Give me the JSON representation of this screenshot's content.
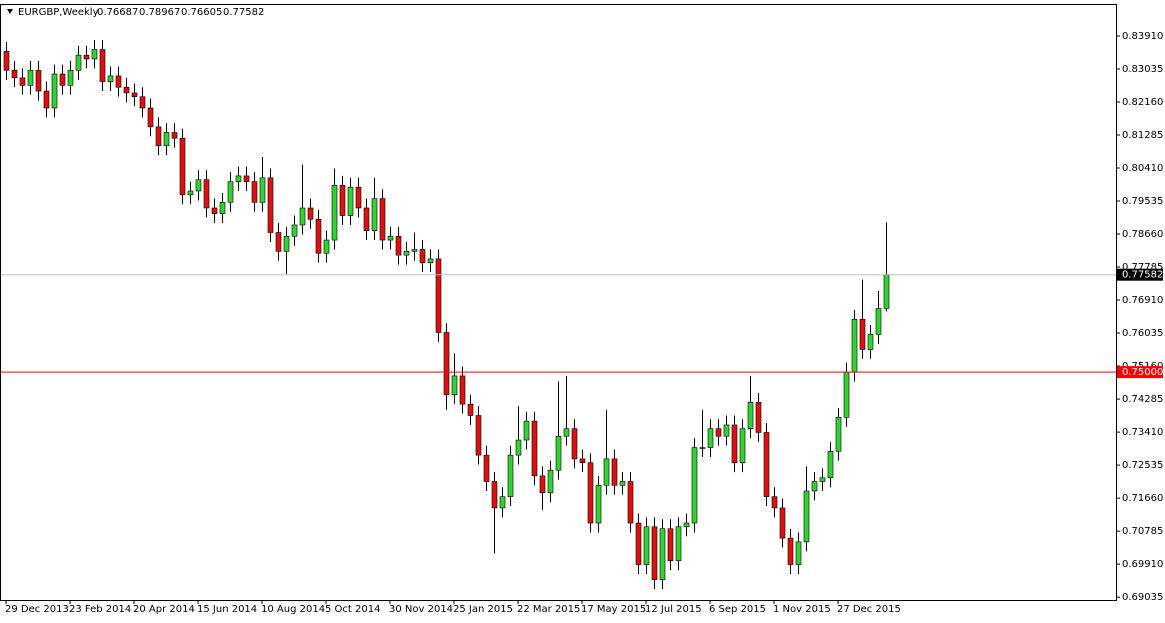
{
  "chart_data": {
    "type": "candlestick",
    "title": "EURGBP,Weekly",
    "categories": [
      "29 Dec 2013",
      null,
      null,
      null,
      null,
      null,
      null,
      null,
      "23 Feb 2014",
      null,
      null,
      null,
      null,
      null,
      null,
      null,
      "20 Apr 2014",
      null,
      null,
      null,
      null,
      null,
      null,
      null,
      "15 Jun 2014",
      null,
      null,
      null,
      null,
      null,
      null,
      null,
      "10 Aug 2014",
      null,
      null,
      null,
      null,
      null,
      null,
      null,
      "5 Oct 2014",
      null,
      null,
      null,
      null,
      null,
      null,
      null,
      "30 Nov 2014",
      null,
      null,
      null,
      null,
      null,
      null,
      null,
      "25 Jan 2015",
      null,
      null,
      null,
      null,
      null,
      null,
      null,
      "22 Mar 2015",
      null,
      null,
      null,
      null,
      null,
      null,
      null,
      "17 May 2015",
      null,
      null,
      null,
      null,
      null,
      null,
      null,
      "12 Jul 2015",
      null,
      null,
      null,
      null,
      null,
      null,
      null,
      "6 Sep 2015",
      null,
      null,
      null,
      null,
      null,
      null,
      null,
      "1 Nov 2015",
      null,
      null,
      null,
      null,
      null,
      null,
      null,
      "27 Dec 2015",
      null,
      null,
      null,
      null,
      null,
      null
    ],
    "open": [
      0.835,
      0.83,
      0.828,
      0.826,
      0.83,
      0.8245,
      0.82,
      0.829,
      0.826,
      0.83,
      0.834,
      0.833,
      0.8355,
      0.827,
      0.8285,
      0.8255,
      0.824,
      0.823,
      0.82,
      0.815,
      0.81,
      0.8135,
      0.812,
      0.797,
      0.798,
      0.801,
      0.7935,
      0.792,
      0.795,
      0.8005,
      0.802,
      0.8005,
      0.795,
      0.8015,
      0.787,
      0.782,
      0.786,
      0.789,
      0.7935,
      0.7905,
      0.7815,
      0.785,
      0.7995,
      0.7915,
      0.799,
      0.7935,
      0.7875,
      0.796,
      0.785,
      0.786,
      0.781,
      0.782,
      0.7825,
      0.779,
      0.78,
      0.7605,
      0.744,
      0.749,
      0.7415,
      0.7385,
      0.728,
      0.721,
      0.714,
      0.717,
      0.728,
      0.732,
      0.737,
      0.7225,
      0.718,
      0.724,
      0.733,
      0.735,
      0.727,
      0.726,
      0.71,
      0.72,
      0.727,
      0.72,
      0.721,
      0.71,
      0.699,
      0.709,
      0.695,
      0.7085,
      0.7,
      0.709,
      0.71,
      0.73,
      0.73,
      0.735,
      0.733,
      0.736,
      0.726,
      0.735,
      0.742,
      0.734,
      0.717,
      0.714,
      0.706,
      0.699,
      0.705,
      0.7185,
      0.721,
      0.722,
      0.729,
      0.738,
      0.75,
      0.764,
      0.756,
      0.76,
      0.76687
    ],
    "high": [
      0.8375,
      0.8325,
      0.8305,
      0.8325,
      0.8325,
      0.827,
      0.8315,
      0.8315,
      0.8325,
      0.8365,
      0.8365,
      0.838,
      0.838,
      0.831,
      0.831,
      0.828,
      0.8265,
      0.8255,
      0.8225,
      0.8175,
      0.816,
      0.816,
      0.8145,
      0.8005,
      0.8035,
      0.8035,
      0.796,
      0.7975,
      0.803,
      0.8045,
      0.8045,
      0.803,
      0.807,
      0.804,
      0.7895,
      0.7885,
      0.7915,
      0.805,
      0.796,
      0.793,
      0.7875,
      0.804,
      0.802,
      0.8015,
      0.8015,
      0.796,
      0.8015,
      0.7985,
      0.7885,
      0.7885,
      0.7845,
      0.787,
      0.785,
      0.7825,
      0.7825,
      0.763,
      0.755,
      0.7515,
      0.744,
      0.741,
      0.7305,
      0.7235,
      0.7195,
      0.7305,
      0.741,
      0.7395,
      0.7395,
      0.725,
      0.7265,
      0.7475,
      0.749,
      0.7375,
      0.7295,
      0.7285,
      0.7225,
      0.74,
      0.7295,
      0.7235,
      0.7235,
      0.7125,
      0.7115,
      0.7115,
      0.711,
      0.711,
      0.7115,
      0.7125,
      0.7325,
      0.74,
      0.7375,
      0.7375,
      0.7385,
      0.7385,
      0.7375,
      0.749,
      0.7445,
      0.7365,
      0.7195,
      0.7165,
      0.7085,
      0.7075,
      0.725,
      0.7235,
      0.7245,
      0.7315,
      0.7405,
      0.7525,
      0.7665,
      0.7745,
      0.7625,
      0.7715,
      0.78967
    ],
    "low": [
      0.8275,
      0.8255,
      0.8235,
      0.8235,
      0.822,
      0.8175,
      0.8175,
      0.8235,
      0.8235,
      0.8275,
      0.8305,
      0.8305,
      0.8245,
      0.8245,
      0.823,
      0.8215,
      0.8205,
      0.8175,
      0.8125,
      0.8075,
      0.8075,
      0.8095,
      0.7945,
      0.7945,
      0.7955,
      0.791,
      0.7895,
      0.7895,
      0.7925,
      0.798,
      0.798,
      0.7925,
      0.7925,
      0.7845,
      0.7795,
      0.776,
      0.7835,
      0.7865,
      0.788,
      0.779,
      0.779,
      0.7825,
      0.789,
      0.789,
      0.791,
      0.785,
      0.785,
      0.7825,
      0.7825,
      0.7785,
      0.7785,
      0.7795,
      0.7765,
      0.7765,
      0.758,
      0.74,
      0.7415,
      0.739,
      0.736,
      0.7255,
      0.7185,
      0.702,
      0.7115,
      0.7145,
      0.7255,
      0.7295,
      0.72,
      0.7135,
      0.7155,
      0.7215,
      0.7305,
      0.7245,
      0.7235,
      0.7075,
      0.7075,
      0.7175,
      0.7175,
      0.7175,
      0.7075,
      0.6965,
      0.6965,
      0.6925,
      0.6925,
      0.6975,
      0.6975,
      0.7065,
      0.7075,
      0.7275,
      0.7275,
      0.7305,
      0.7305,
      0.7235,
      0.7235,
      0.7325,
      0.7315,
      0.7145,
      0.7115,
      0.7035,
      0.6965,
      0.6965,
      0.7025,
      0.716,
      0.7185,
      0.7195,
      0.7265,
      0.7355,
      0.7475,
      0.7535,
      0.7535,
      0.7575,
      0.76605
    ],
    "close": [
      0.83,
      0.828,
      0.826,
      0.83,
      0.8245,
      0.82,
      0.829,
      0.826,
      0.83,
      0.834,
      0.833,
      0.8355,
      0.827,
      0.8285,
      0.8255,
      0.824,
      0.823,
      0.82,
      0.815,
      0.81,
      0.8135,
      0.812,
      0.797,
      0.798,
      0.801,
      0.7935,
      0.792,
      0.795,
      0.8005,
      0.802,
      0.8005,
      0.795,
      0.8015,
      0.787,
      0.782,
      0.786,
      0.789,
      0.7935,
      0.7905,
      0.7815,
      0.785,
      0.7995,
      0.7915,
      0.799,
      0.7935,
      0.7875,
      0.796,
      0.785,
      0.786,
      0.781,
      0.782,
      0.7825,
      0.779,
      0.78,
      0.7605,
      0.744,
      0.749,
      0.7415,
      0.7385,
      0.728,
      0.721,
      0.714,
      0.717,
      0.728,
      0.732,
      0.737,
      0.7225,
      0.718,
      0.724,
      0.733,
      0.735,
      0.727,
      0.726,
      0.71,
      0.72,
      0.727,
      0.72,
      0.721,
      0.71,
      0.699,
      0.709,
      0.695,
      0.7085,
      0.7,
      0.709,
      0.71,
      0.73,
      0.73,
      0.735,
      0.733,
      0.736,
      0.726,
      0.735,
      0.742,
      0.734,
      0.717,
      0.714,
      0.706,
      0.699,
      0.705,
      0.7185,
      0.721,
      0.722,
      0.729,
      0.738,
      0.75,
      0.764,
      0.756,
      0.76,
      0.76687,
      0.77582
    ],
    "up_color": "#32d232",
    "down_color": "#e01010",
    "ylim": [
      0.6896,
      0.8473
    ],
    "yticks": [
      {
        "value": 0.8391,
        "label": "0.83910"
      },
      {
        "value": 0.83035,
        "label": "0.83035"
      },
      {
        "value": 0.8216,
        "label": "0.82160"
      },
      {
        "value": 0.81285,
        "label": "0.81285"
      },
      {
        "value": 0.8041,
        "label": "0.80410"
      },
      {
        "value": 0.79535,
        "label": "0.79535"
      },
      {
        "value": 0.7866,
        "label": "0.78660"
      },
      {
        "value": 0.77785,
        "label": "0.77785"
      },
      {
        "value": 0.7691,
        "label": "0.76910"
      },
      {
        "value": 0.76035,
        "label": "0.76035"
      },
      {
        "value": 0.7516,
        "label": "0.75160"
      },
      {
        "value": 0.74285,
        "label": "0.74285"
      },
      {
        "value": 0.7341,
        "label": "0.73410"
      },
      {
        "value": 0.72535,
        "label": "0.72535"
      },
      {
        "value": 0.7166,
        "label": "0.71660"
      },
      {
        "value": 0.70785,
        "label": "0.70785"
      },
      {
        "value": 0.6991,
        "label": "0.69910"
      },
      {
        "value": 0.69035,
        "label": "0.69035"
      }
    ],
    "hlines": [
      {
        "value": 0.77582,
        "label": "0.77582",
        "color": "#c0c0c0",
        "label_bg": "#000000",
        "label_color": "#ffffff"
      },
      {
        "value": 0.75,
        "label": "0.75000",
        "color": "#ff0000",
        "label_bg": "#ff0000",
        "label_color": "#ffffff"
      }
    ]
  }
}
